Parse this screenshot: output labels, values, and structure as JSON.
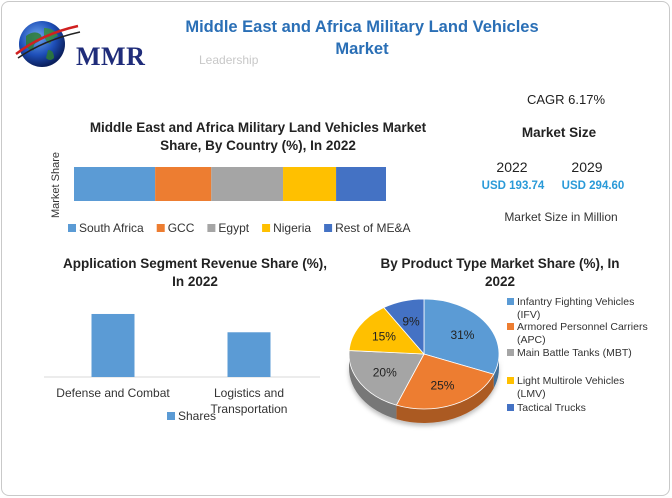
{
  "logo": {
    "text": "MMR"
  },
  "header": {
    "title": "Middle East and Africa Military Land Vehicles Market",
    "watermark": "Leadership"
  },
  "stats": {
    "cagr": "CAGR 6.17%",
    "market_size_heading": "Market Size",
    "year_start": "2022",
    "year_end": "2029",
    "value_start": "USD 193.74",
    "value_end": "USD 294.60",
    "unit": "Market Size in Million"
  },
  "colors": {
    "blue": "#5b9bd5",
    "orange": "#ed7d31",
    "gray": "#a5a5a5",
    "yellow": "#ffc000",
    "darkblue": "#4472c4",
    "title_blue": "#2a6fb6",
    "value_blue": "#2a9ad8"
  },
  "chart_data": [
    {
      "type": "bar",
      "orientation": "horizontal-stacked",
      "title": "Middle East and Africa Military Land Vehicles Market Share, By Country (%), In 2022",
      "ylabel": "Market Share",
      "series": [
        {
          "name": "South Africa",
          "value": 26,
          "color": "#5b9bd5"
        },
        {
          "name": "GCC",
          "value": 18,
          "color": "#ed7d31"
        },
        {
          "name": "Egypt",
          "value": 23,
          "color": "#a5a5a5"
        },
        {
          "name": "Nigeria",
          "value": 17,
          "color": "#ffc000"
        },
        {
          "name": "Rest of ME&A",
          "value": 16,
          "color": "#4472c4"
        }
      ],
      "legend": "bottom"
    },
    {
      "type": "bar",
      "title": "Application Segment Revenue Share (%), In 2022",
      "categories": [
        "Defense and Combat",
        "Logistics and Transportation"
      ],
      "series": [
        {
          "name": "Shares",
          "values": [
            62,
            44
          ],
          "color": "#5b9bd5"
        }
      ],
      "ylim": [
        0,
        100
      ],
      "legend": "bottom"
    },
    {
      "type": "pie",
      "title": "By Product Type Market Share (%), In 2022",
      "slices": [
        {
          "label": "Infantry Fighting Vehicles (IFV)",
          "value": 31,
          "display": "31%",
          "color": "#5b9bd5"
        },
        {
          "label": "Armored Personnel Carriers (APC)",
          "value": 25,
          "display": "25%",
          "color": "#ed7d31"
        },
        {
          "label": "Main Battle Tanks (MBT)",
          "value": 20,
          "display": "20%",
          "color": "#a5a5a5"
        },
        {
          "label": "Light Multirole Vehicles (LMV)",
          "value": 15,
          "display": "15%",
          "color": "#ffc000"
        },
        {
          "label": "Tactical Trucks",
          "value": 9,
          "display": "9%",
          "color": "#4472c4"
        }
      ],
      "legend": "right"
    }
  ]
}
